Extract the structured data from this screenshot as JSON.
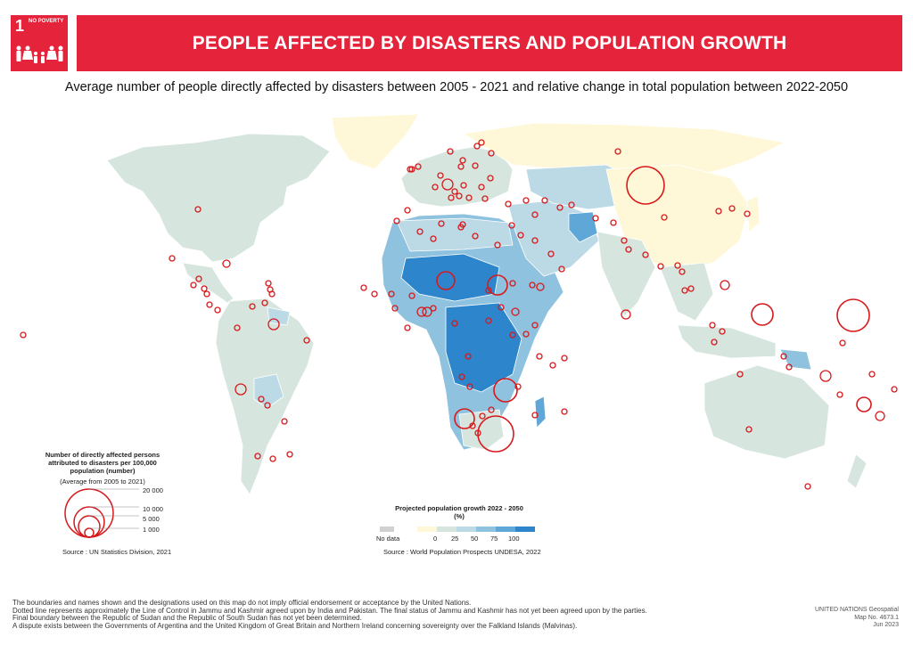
{
  "sdg": {
    "number": "1",
    "label": "NO POVERTY"
  },
  "title": "PEOPLE AFFECTED BY DISASTERS AND POPULATION GROWTH",
  "subtitle": "Average number of people directly affected by disasters between 2005 - 2021 and relative change in total population between 2022-2050",
  "colors": {
    "accent_red": "#e5243b",
    "circle_stroke": "#d7191c",
    "ocean": "#ffffff",
    "no_data": "#d0d0d0",
    "growth_scale": [
      "#fff8d8",
      "#d6e6df",
      "#bcd9e6",
      "#8ec2de",
      "#5ea7d6",
      "#2d86cc"
    ]
  },
  "legend_circles": {
    "title": "Number of directly affected persons attributed to disasters per 100,000 population (number)",
    "subtitle": "(Average from 2005 to 2021)",
    "values": [
      "20 000",
      "10 000",
      "5 000",
      "1 000"
    ],
    "source": "Source : UN Statistics Division, 2021"
  },
  "legend_growth": {
    "title": "Projected population growth 2022 - 2050 (%)",
    "no_data_label": "No data",
    "ticks": [
      "0",
      "25",
      "50",
      "75",
      "100"
    ],
    "source": "Source : World Population Prospects UNDESA, 2022"
  },
  "footer_notes": [
    "The boundaries and names shown and the designations used on this map do not imply official endorsement or acceptance by the United Nations.",
    "Dotted line represents approximately the Line of Control in Jammu and Kashmir agreed upon by India and Pakistan. The final status of Jammu and Kashmir has not yet been agreed upon by the parties.",
    "Final boundary between the Republic of Sudan and the Republic of South Sudan has not yet been determined.",
    "A dispute exists between the Governments of Argentina and the United Kingdom of Great Britain and Northern Ireland concerning sovereignty over the Falkland Islands (Malvinas)."
  ],
  "credit": {
    "org": "UNITED NATIONS Geospatial",
    "map_no": "Map No. 4673.1",
    "date": "Jun 2023"
  }
}
